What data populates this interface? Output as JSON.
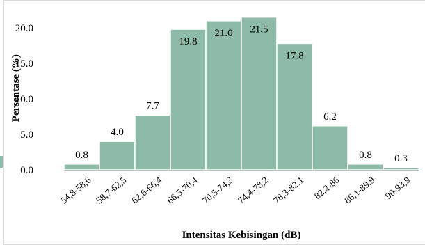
{
  "chart_data": {
    "type": "bar",
    "title": "",
    "xlabel": "Intensitas Kebisingan (dB)",
    "ylabel": "Persentase (%)",
    "categories": [
      "54,8-58,6",
      "58,7-62,5",
      "62,6-66,4",
      "66,5-70,4",
      "70,5-74,3",
      "74,4-78,2",
      "78,3-82,1",
      "82,2-86",
      "86,1-89,9",
      "90-93,9"
    ],
    "values": [
      0.8,
      4.0,
      7.7,
      19.8,
      21.0,
      21.5,
      17.8,
      6.2,
      0.8,
      0.3
    ],
    "value_labels": [
      "0.8",
      "4.0",
      "7.7",
      "19.8",
      "21.0",
      "21.5",
      "17.8",
      "6.2",
      "0.8",
      "0.3"
    ],
    "y_ticks": [
      0,
      5,
      10,
      15,
      20
    ],
    "y_tick_labels": [
      "0.0",
      "5.0",
      "10.0",
      "15.0",
      "20.0"
    ],
    "ylim": [
      0,
      22.5
    ],
    "grid": false,
    "legend": "none",
    "bar_color": "#8ebba7"
  }
}
